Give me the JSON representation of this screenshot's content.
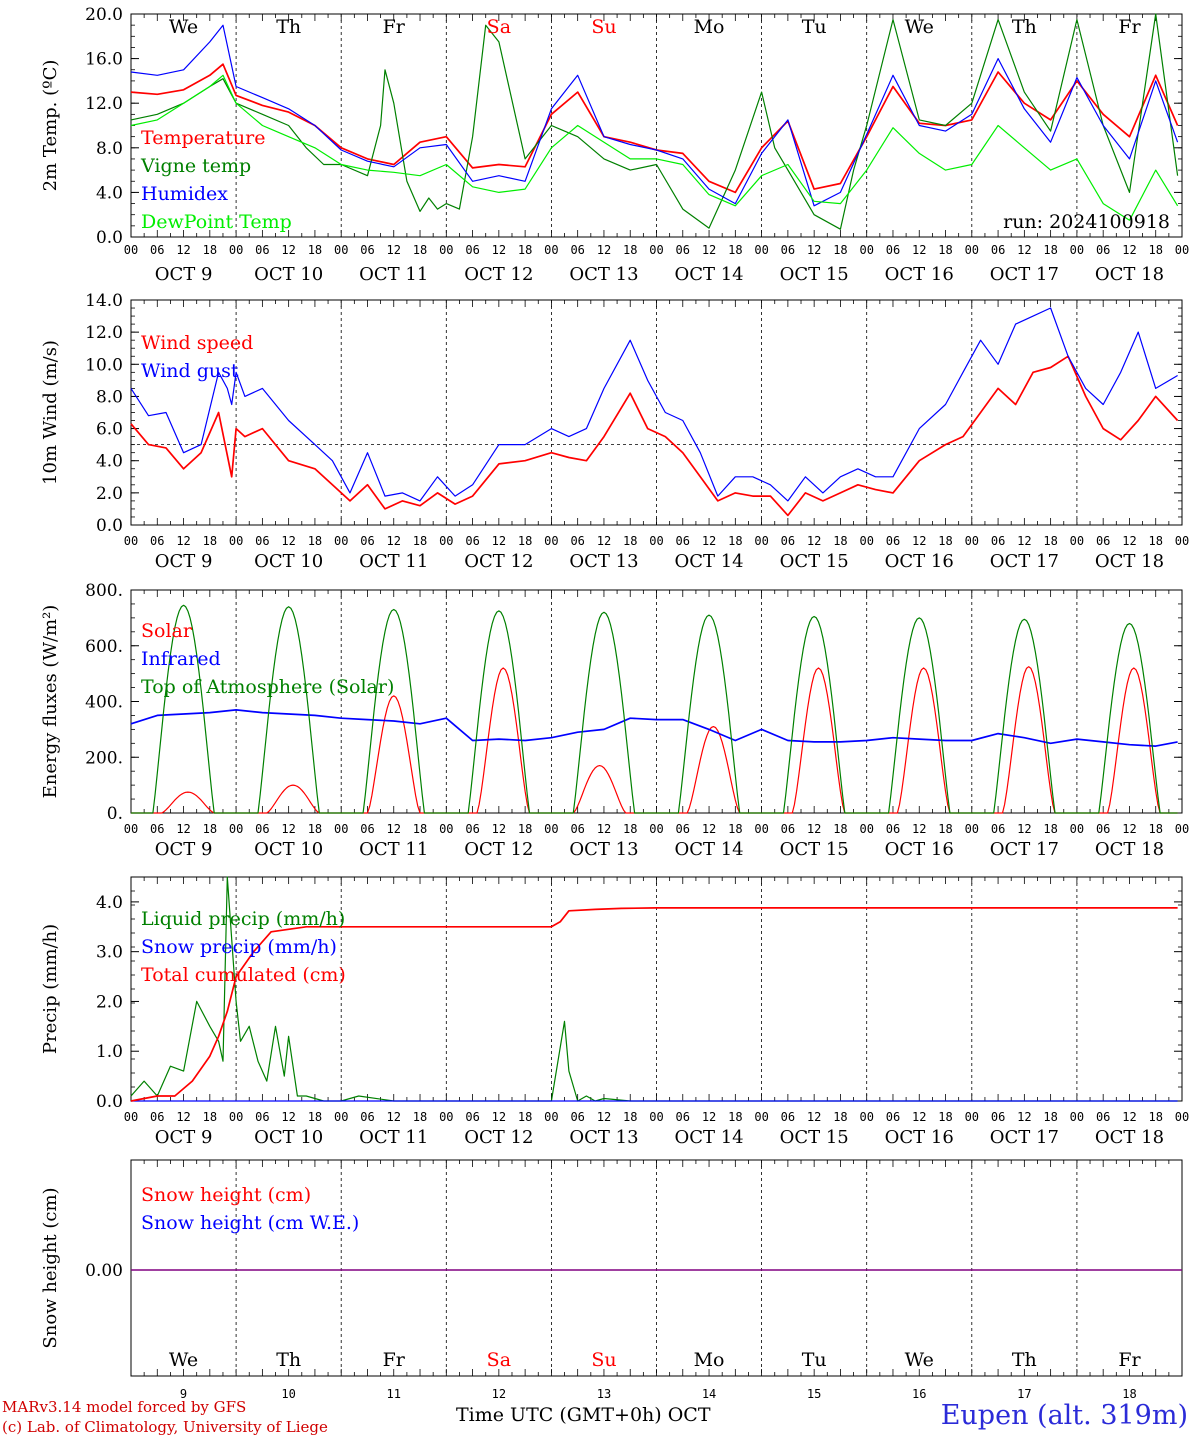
{
  "station": "Eupen (alt. 319m)",
  "model_credit": "MARv3.14 model forced by GFS",
  "lab_credit": "(c) Lab. of Climatology, University of Liege",
  "x_axis_title": "Time UTC (GMT+0h) OCT",
  "run_label": "run: 2024100918",
  "days": [
    {
      "abbr": "We",
      "date": "OCT  9",
      "num": "9",
      "weekend": false
    },
    {
      "abbr": "Th",
      "date": "OCT 10",
      "num": "10",
      "weekend": false
    },
    {
      "abbr": "Fr",
      "date": "OCT 11",
      "num": "11",
      "weekend": false
    },
    {
      "abbr": "Sa",
      "date": "OCT 12",
      "num": "12",
      "weekend": true
    },
    {
      "abbr": "Su",
      "date": "OCT 13",
      "num": "13",
      "weekend": true
    },
    {
      "abbr": "Mo",
      "date": "OCT 14",
      "num": "14",
      "weekend": false
    },
    {
      "abbr": "Tu",
      "date": "OCT 15",
      "num": "15",
      "weekend": false
    },
    {
      "abbr": "We",
      "date": "OCT 16",
      "num": "16",
      "weekend": false
    },
    {
      "abbr": "Th",
      "date": "OCT 17",
      "num": "17",
      "weekend": false
    },
    {
      "abbr": "Fr",
      "date": "OCT 18",
      "num": "18",
      "weekend": false
    }
  ],
  "hour_ticks": [
    "00",
    "06",
    "12",
    "18"
  ],
  "colors": {
    "red": "#ff0000",
    "darkgreen": "#008000",
    "blue": "#0000ff",
    "lightgreen": "#00ee00",
    "purple": "#800080",
    "weekend": "#ff0000"
  },
  "chart_data": [
    {
      "type": "line",
      "ylabel": "2m Temp. (ºC)",
      "ylim": [
        0,
        20
      ],
      "yticks": [
        "0.0",
        "4.0",
        "8.0",
        "12.0",
        "16.0",
        "20.0"
      ],
      "x_unit": "hours since Oct 9 00 UTC",
      "series": [
        {
          "name": "Temperature",
          "color": "#ff0000",
          "x": [
            0,
            6,
            12,
            18,
            21,
            24,
            30,
            36,
            42,
            48,
            54,
            60,
            66,
            72,
            78,
            84,
            90,
            96,
            102,
            108,
            114,
            120,
            126,
            132,
            138,
            144,
            150,
            156,
            162,
            168,
            174,
            180,
            186,
            192,
            198,
            204,
            210,
            216,
            222,
            228,
            234,
            239
          ],
          "y": [
            13.0,
            12.8,
            13.2,
            14.5,
            15.5,
            12.7,
            11.8,
            11.2,
            10.0,
            8.0,
            7.0,
            6.5,
            8.5,
            9.0,
            6.2,
            6.5,
            6.3,
            11.0,
            13.0,
            9.0,
            8.5,
            7.8,
            7.5,
            5.0,
            4.0,
            8.0,
            10.4,
            4.3,
            4.8,
            9.0,
            13.5,
            10.2,
            10.0,
            10.5,
            14.8,
            12.0,
            10.5,
            14.0,
            11.0,
            9.0,
            14.5,
            10.0
          ]
        },
        {
          "name": "Vigne temp",
          "color": "#008000",
          "x": [
            0,
            6,
            12,
            18,
            21,
            24,
            30,
            36,
            40,
            44,
            48,
            54,
            57,
            58,
            60,
            63,
            66,
            68,
            70,
            72,
            75,
            78,
            81,
            84,
            90,
            96,
            102,
            108,
            114,
            120,
            126,
            132,
            138,
            144,
            147,
            150,
            156,
            162,
            165,
            168,
            174,
            180,
            186,
            192,
            198,
            204,
            210,
            216,
            222,
            228,
            234,
            239
          ],
          "y": [
            10.5,
            11.0,
            12.0,
            13.5,
            14.2,
            12.0,
            11.0,
            10.0,
            8.0,
            6.5,
            6.5,
            5.5,
            10.0,
            15.0,
            12.0,
            5.0,
            2.3,
            3.5,
            2.5,
            3.0,
            2.5,
            9.0,
            19.0,
            17.5,
            7.0,
            10.0,
            9.0,
            7.0,
            6.0,
            6.5,
            2.5,
            0.8,
            6.0,
            13.0,
            8.0,
            6.0,
            2.0,
            0.7,
            6.0,
            10.0,
            19.5,
            10.5,
            10.0,
            12.0,
            19.5,
            13.0,
            9.5,
            19.5,
            10.0,
            4.0,
            20.0,
            5.5
          ]
        },
        {
          "name": "Humidex",
          "color": "#0000ff",
          "x": [
            0,
            6,
            12,
            18,
            21,
            24,
            30,
            36,
            42,
            48,
            54,
            60,
            66,
            72,
            78,
            84,
            90,
            96,
            102,
            108,
            114,
            120,
            126,
            132,
            138,
            144,
            150,
            156,
            162,
            168,
            174,
            180,
            186,
            192,
            198,
            204,
            210,
            216,
            222,
            228,
            234,
            239
          ],
          "y": [
            14.8,
            14.5,
            15.0,
            17.5,
            19.0,
            13.5,
            12.5,
            11.5,
            10.0,
            7.8,
            6.8,
            6.3,
            8.0,
            8.3,
            5.0,
            5.5,
            5.0,
            11.5,
            14.5,
            9.0,
            8.3,
            7.8,
            7.0,
            4.3,
            3.0,
            7.5,
            10.5,
            2.8,
            4.0,
            9.2,
            14.5,
            10.0,
            9.5,
            11.0,
            16.0,
            11.5,
            8.5,
            14.3,
            10.0,
            7.0,
            14.0,
            8.5
          ]
        },
        {
          "name": "DewPoint Temp",
          "color": "#00ee00",
          "x": [
            0,
            6,
            12,
            18,
            21,
            24,
            30,
            36,
            42,
            48,
            54,
            60,
            66,
            72,
            78,
            84,
            90,
            96,
            102,
            108,
            114,
            120,
            126,
            132,
            138,
            144,
            150,
            156,
            162,
            168,
            174,
            180,
            186,
            192,
            198,
            204,
            210,
            216,
            222,
            228,
            234,
            239
          ],
          "y": [
            10.0,
            10.5,
            12.0,
            13.5,
            14.5,
            12.0,
            10.0,
            9.0,
            8.0,
            6.5,
            6.0,
            5.8,
            5.5,
            6.5,
            4.5,
            4.0,
            4.3,
            8.0,
            10.0,
            8.5,
            7.0,
            7.0,
            6.5,
            3.8,
            2.8,
            5.5,
            6.5,
            3.2,
            3.0,
            6.0,
            9.8,
            7.5,
            6.0,
            6.5,
            10.0,
            8.0,
            6.0,
            7.0,
            3.0,
            1.5,
            6.0,
            2.8
          ]
        }
      ]
    },
    {
      "type": "line",
      "ylabel": "10m Wind (m/s)",
      "ylim": [
        0,
        14
      ],
      "yticks": [
        "0.0",
        "2.0",
        "4.0",
        "6.0",
        "8.0",
        "10.0",
        "12.0",
        "14.0"
      ],
      "reference_line": 5.0,
      "series": [
        {
          "name": "Wind speed",
          "color": "#ff0000",
          "x": [
            0,
            4,
            8,
            12,
            16,
            20,
            23,
            24,
            26,
            30,
            36,
            42,
            46,
            50,
            54,
            58,
            62,
            66,
            70,
            74,
            78,
            84,
            90,
            96,
            100,
            104,
            108,
            114,
            118,
            122,
            126,
            130,
            134,
            138,
            142,
            146,
            150,
            154,
            158,
            162,
            166,
            170,
            174,
            180,
            186,
            190,
            194,
            198,
            202,
            206,
            210,
            214,
            218,
            222,
            226,
            230,
            234,
            239
          ],
          "y": [
            6.3,
            5.0,
            4.8,
            3.5,
            4.5,
            7.0,
            3.0,
            6.0,
            5.5,
            6.0,
            4.0,
            3.5,
            2.5,
            1.5,
            2.5,
            1.0,
            1.5,
            1.2,
            2.0,
            1.3,
            1.8,
            3.8,
            4.0,
            4.5,
            4.2,
            4.0,
            5.5,
            8.2,
            6.0,
            5.5,
            4.5,
            3.0,
            1.5,
            2.0,
            1.8,
            1.8,
            0.6,
            2.0,
            1.5,
            2.0,
            2.5,
            2.2,
            2.0,
            4.0,
            5.0,
            5.5,
            7.0,
            8.5,
            7.5,
            9.5,
            9.8,
            10.5,
            8.0,
            6.0,
            5.3,
            6.5,
            8.0,
            6.5
          ]
        },
        {
          "name": "Wind gust",
          "color": "#0000ff",
          "x": [
            0,
            4,
            8,
            12,
            16,
            20,
            22,
            23,
            24,
            26,
            30,
            36,
            42,
            46,
            50,
            54,
            58,
            62,
            66,
            70,
            74,
            78,
            84,
            90,
            96,
            100,
            104,
            108,
            114,
            118,
            122,
            126,
            130,
            134,
            138,
            142,
            146,
            150,
            154,
            158,
            162,
            166,
            170,
            174,
            180,
            186,
            190,
            194,
            198,
            202,
            206,
            210,
            214,
            218,
            222,
            226,
            230,
            234,
            239
          ],
          "y": [
            8.5,
            6.8,
            7.0,
            4.5,
            5.0,
            9.5,
            8.5,
            7.5,
            9.5,
            8.0,
            8.5,
            6.5,
            5.0,
            4.0,
            2.0,
            4.5,
            1.8,
            2.0,
            1.5,
            3.0,
            1.8,
            2.5,
            5.0,
            5.0,
            6.0,
            5.5,
            6.0,
            8.5,
            11.5,
            9.0,
            7.0,
            6.5,
            4.5,
            1.8,
            3.0,
            3.0,
            2.5,
            1.5,
            3.0,
            2.0,
            3.0,
            3.5,
            3.0,
            3.0,
            6.0,
            7.5,
            9.5,
            11.5,
            10.0,
            12.5,
            13.0,
            13.5,
            10.5,
            8.5,
            7.5,
            9.5,
            12.0,
            8.5,
            9.3
          ]
        }
      ]
    },
    {
      "type": "line",
      "ylabel": "Energy fluxes (W/m²)",
      "ylim": [
        0,
        800
      ],
      "yticks": [
        "0.",
        "200.",
        "400.",
        "600.",
        "800."
      ],
      "series": [
        {
          "name": "Solar",
          "color": "#ff0000",
          "peaks": [
            [
              13,
              75
            ],
            [
              37,
              100
            ],
            [
              60,
              420
            ],
            [
              85,
              520
            ],
            [
              107,
              170
            ],
            [
              133,
              310
            ],
            [
              157,
              520
            ],
            [
              181,
              520
            ],
            [
              205,
              525
            ],
            [
              229,
              520
            ]
          ]
        },
        {
          "name": "Infrared",
          "color": "#0000ff",
          "x": [
            0,
            6,
            12,
            18,
            24,
            30,
            36,
            42,
            48,
            54,
            60,
            66,
            72,
            78,
            84,
            90,
            96,
            102,
            108,
            114,
            120,
            126,
            132,
            138,
            144,
            150,
            156,
            162,
            168,
            174,
            180,
            186,
            192,
            198,
            204,
            210,
            216,
            222,
            228,
            234,
            239
          ],
          "y": [
            320,
            350,
            355,
            360,
            370,
            360,
            355,
            350,
            340,
            335,
            330,
            320,
            340,
            260,
            265,
            260,
            270,
            290,
            300,
            340,
            335,
            335,
            300,
            260,
            300,
            260,
            255,
            255,
            260,
            270,
            265,
            260,
            260,
            285,
            270,
            250,
            265,
            255,
            245,
            240,
            255
          ]
        },
        {
          "name": "Top of Atmosphere (Solar)",
          "color": "#008000",
          "peaks": [
            [
              12,
              745
            ],
            [
              36,
              740
            ],
            [
              60,
              730
            ],
            [
              84,
              725
            ],
            [
              108,
              720
            ],
            [
              132,
              710
            ],
            [
              156,
              705
            ],
            [
              180,
              700
            ],
            [
              204,
              695
            ],
            [
              228,
              680
            ]
          ]
        }
      ]
    },
    {
      "type": "line",
      "ylabel": "Precip (mm/h)",
      "ylim": [
        0,
        4.5
      ],
      "yticks": [
        "0.0",
        "1.0",
        "2.0",
        "3.0",
        "4.0"
      ],
      "series": [
        {
          "name": "Liquid precip (mm/h)",
          "color": "#008000",
          "x": [
            0,
            3,
            6,
            9,
            12,
            15,
            18,
            20,
            21,
            22,
            24,
            25,
            27,
            29,
            31,
            33,
            35,
            36,
            38,
            40,
            44,
            48,
            52,
            60,
            72,
            90,
            96,
            99,
            100,
            102,
            104,
            106,
            108,
            114,
            120,
            239
          ],
          "y": [
            0.1,
            0.4,
            0.1,
            0.7,
            0.6,
            2.0,
            1.5,
            1.2,
            0.8,
            4.5,
            2.0,
            1.2,
            1.5,
            0.8,
            0.4,
            1.5,
            0.5,
            1.3,
            0.1,
            0.1,
            0.0,
            0.0,
            0.1,
            0.0,
            0.0,
            0.0,
            0.0,
            1.6,
            0.6,
            0.0,
            0.1,
            0.0,
            0.05,
            0.0,
            0.0,
            0.0
          ]
        },
        {
          "name": "Snow precip (mm/h)",
          "color": "#0000ff",
          "x": [
            0,
            239
          ],
          "y": [
            0,
            0
          ]
        },
        {
          "name": "Total cumulated (cm)",
          "color": "#ff0000",
          "x": [
            0,
            6,
            10,
            14,
            18,
            20,
            22,
            24,
            28,
            32,
            36,
            40,
            48,
            96,
            98,
            100,
            106,
            112,
            120,
            239
          ],
          "y": [
            0,
            0.1,
            0.1,
            0.4,
            0.9,
            1.3,
            1.8,
            2.5,
            3.0,
            3.4,
            3.45,
            3.5,
            3.5,
            3.5,
            3.6,
            3.82,
            3.85,
            3.87,
            3.88,
            3.88
          ]
        }
      ]
    },
    {
      "type": "line",
      "ylabel": "Snow height (cm)",
      "yticks": [
        "0.00"
      ],
      "series": [
        {
          "name": "Snow height (cm)",
          "color": "#ff0000",
          "x": [
            0,
            239
          ],
          "y": [
            0,
            0
          ]
        },
        {
          "name": "Snow height (cm W.E.)",
          "color": "#0000ff",
          "x": [
            0,
            239
          ],
          "y": [
            0,
            0
          ]
        }
      ]
    }
  ]
}
